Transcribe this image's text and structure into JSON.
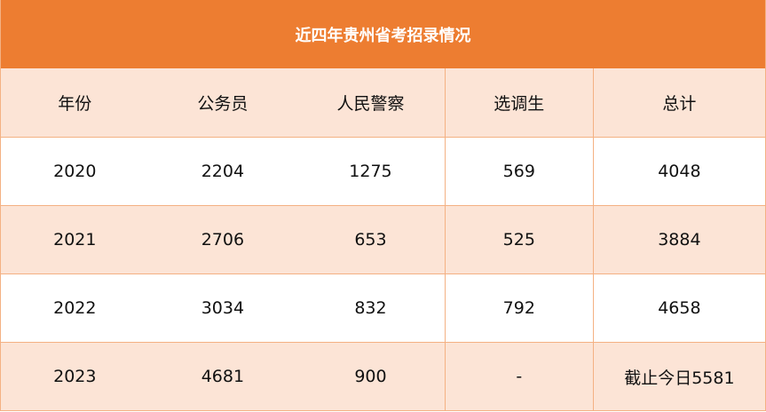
{
  "title": "近四年贵州省考招录情况",
  "colors": {
    "header": "#ED7D31",
    "shade": "#FCE4D6",
    "border": "#F4B183"
  },
  "columns": [
    "年份",
    "公务员",
    "人民警察",
    "选调生",
    "总计"
  ],
  "rows": [
    [
      "2020",
      "2204",
      "1275",
      "569",
      "4048"
    ],
    [
      "2021",
      "2706",
      "653",
      "525",
      "3884"
    ],
    [
      "2022",
      "3034",
      "832",
      "792",
      "4658"
    ],
    [
      "2023",
      "4681",
      "900",
      "-",
      "截止今日5581"
    ]
  ]
}
